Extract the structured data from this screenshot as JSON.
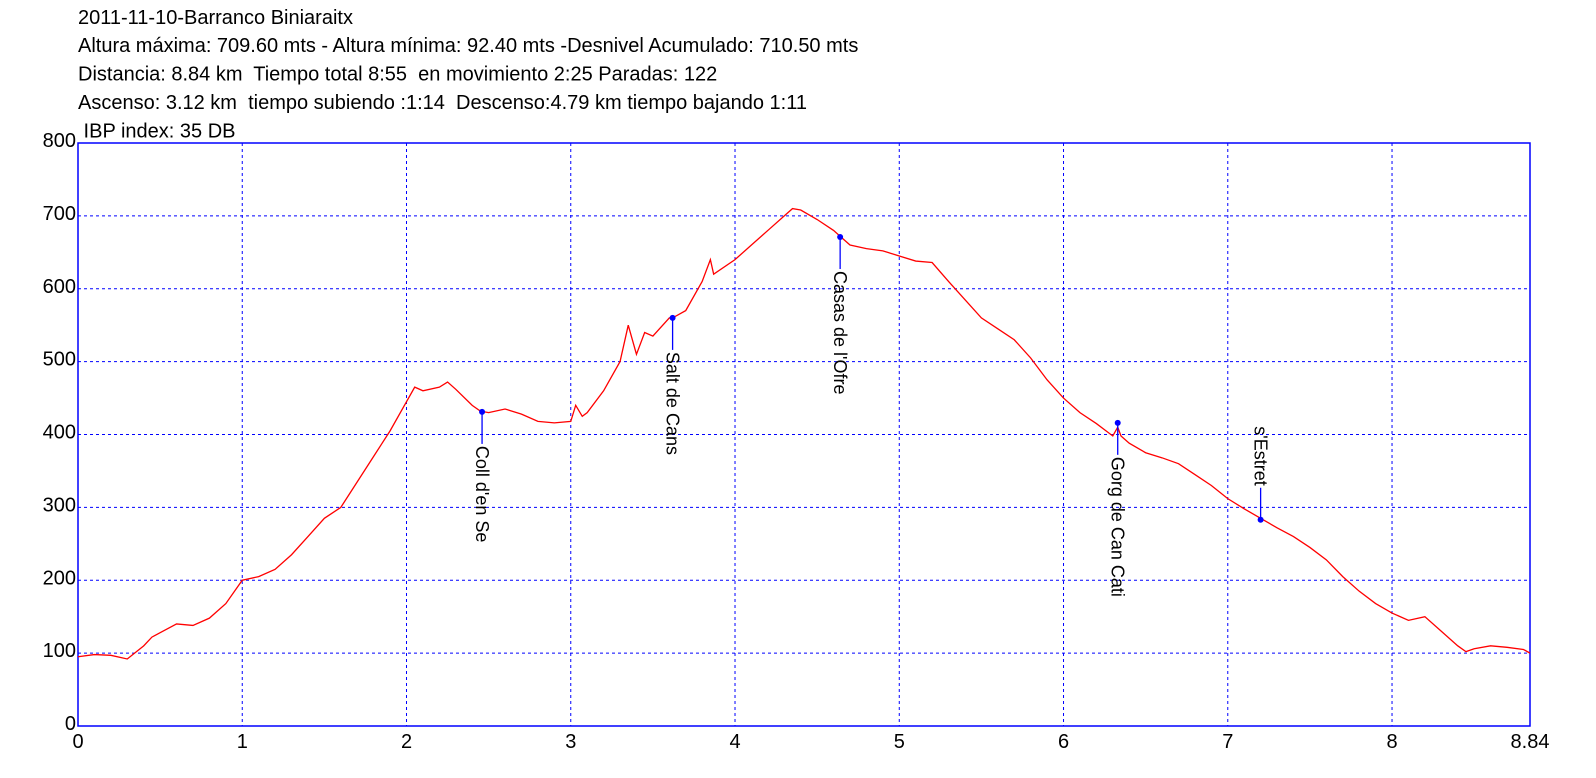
{
  "chart_data": {
    "type": "line",
    "title": "2011-11-10-Barranco Biniaraitx",
    "subtitle_lines": [
      "Altura máxima: 709.60 mts - Altura mínima: 92.40 mts -Desnivel Acumulado: 710.50 mts",
      "Distancia: 8.84 km  Tiempo total 8:55  en movimiento 2:25 Paradas: 122",
      "Ascenso: 3.12 km  tiempo subiendo :1:14  Descenso:4.79 km tiempo bajando 1:11",
      " IBP index: 35 DB"
    ],
    "x": [
      0,
      0.1,
      0.2,
      0.3,
      0.4,
      0.45,
      0.5,
      0.6,
      0.7,
      0.8,
      0.9,
      1.0,
      1.1,
      1.2,
      1.3,
      1.4,
      1.5,
      1.6,
      1.7,
      1.8,
      1.9,
      2.0,
      2.05,
      2.1,
      2.2,
      2.25,
      2.3,
      2.4,
      2.45,
      2.5,
      2.6,
      2.7,
      2.8,
      2.9,
      3.0,
      3.03,
      3.07,
      3.1,
      3.2,
      3.3,
      3.35,
      3.4,
      3.45,
      3.5,
      3.6,
      3.62,
      3.7,
      3.8,
      3.85,
      3.87,
      4.0,
      4.1,
      4.2,
      4.3,
      4.35,
      4.4,
      4.5,
      4.6,
      4.65,
      4.7,
      4.8,
      4.9,
      5.0,
      5.1,
      5.2,
      5.3,
      5.4,
      5.5,
      5.6,
      5.7,
      5.8,
      5.9,
      6.0,
      6.1,
      6.2,
      6.3,
      6.33,
      6.35,
      6.4,
      6.5,
      6.6,
      6.7,
      6.8,
      6.9,
      7.0,
      7.1,
      7.2,
      7.3,
      7.4,
      7.5,
      7.6,
      7.7,
      7.8,
      7.9,
      8.0,
      8.1,
      8.2,
      8.3,
      8.4,
      8.45,
      8.5,
      8.6,
      8.7,
      8.8,
      8.84
    ],
    "values": [
      95,
      98,
      97,
      92,
      110,
      122,
      128,
      140,
      138,
      148,
      168,
      200,
      205,
      215,
      235,
      260,
      285,
      300,
      335,
      370,
      405,
      445,
      465,
      460,
      465,
      472,
      462,
      440,
      432,
      430,
      435,
      428,
      418,
      416,
      418,
      440,
      425,
      430,
      460,
      500,
      550,
      510,
      540,
      535,
      560,
      560,
      570,
      610,
      640,
      620,
      640,
      660,
      680,
      700,
      710,
      708,
      695,
      680,
      670,
      660,
      655,
      652,
      645,
      638,
      636,
      610,
      585,
      560,
      545,
      530,
      505,
      475,
      450,
      430,
      415,
      398,
      410,
      398,
      388,
      375,
      368,
      360,
      345,
      330,
      312,
      298,
      285,
      272,
      260,
      245,
      228,
      205,
      185,
      168,
      155,
      145,
      150,
      130,
      110,
      102,
      106,
      110,
      108,
      105,
      100
    ],
    "color": "#ff0000",
    "waypoints": [
      {
        "label": "Coll d'en Se",
        "x": 2.46,
        "y": 431
      },
      {
        "label": "Salt de Cans",
        "x": 3.62,
        "y": 560
      },
      {
        "label": "Casas de l'Ofre",
        "x": 4.64,
        "y": 671
      },
      {
        "label": "Gorg de Can Cati",
        "x": 6.33,
        "y": 416
      },
      {
        "label": "s'Estret",
        "x": 7.2,
        "y": 283,
        "label_position": "above"
      }
    ],
    "waypoint_color": "#0000ff",
    "xlim": [
      0,
      8.84
    ],
    "xticks": [
      0,
      1,
      2,
      3,
      4,
      5,
      6,
      7,
      8,
      8.84
    ],
    "ylim": [
      0,
      800
    ],
    "yticks": [
      0,
      100,
      200,
      300,
      400,
      500,
      600,
      700,
      800
    ],
    "grid": true,
    "grid_color": "#0000ff"
  }
}
